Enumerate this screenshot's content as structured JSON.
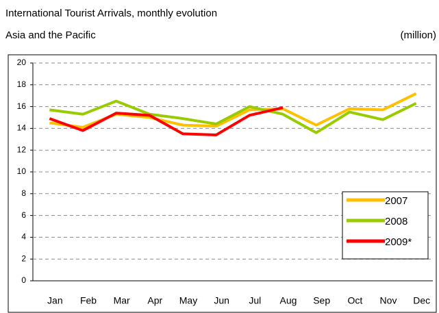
{
  "chart_data": {
    "type": "line",
    "title": "International Tourist Arrivals, monthly evolution",
    "subtitle": "Asia and the Pacific",
    "unit_label": "(million)",
    "categories": [
      "Jan",
      "Feb",
      "Mar",
      "Apr",
      "May",
      "Jun",
      "Jul",
      "Aug",
      "Sep",
      "Oct",
      "Nov",
      "Dec"
    ],
    "series": [
      {
        "name": "2007",
        "color": "#ffc000",
        "values": [
          14.5,
          14.1,
          15.3,
          15.0,
          14.3,
          14.2,
          15.7,
          15.8,
          14.3,
          15.8,
          15.7,
          17.2
        ]
      },
      {
        "name": "2008",
        "color": "#99cc00",
        "values": [
          15.7,
          15.3,
          16.5,
          15.3,
          14.9,
          14.4,
          16.0,
          15.3,
          13.6,
          15.5,
          14.8,
          16.3
        ]
      },
      {
        "name": "2009*",
        "color": "#ff0000",
        "values": [
          14.9,
          13.8,
          15.4,
          15.2,
          13.5,
          13.4,
          15.2,
          15.9,
          null,
          null,
          null,
          null
        ]
      }
    ],
    "ylim": [
      0,
      20
    ],
    "yticks": [
      0,
      2,
      4,
      6,
      8,
      10,
      12,
      14,
      16,
      18,
      20
    ],
    "grid": true,
    "legend": "lower right"
  }
}
